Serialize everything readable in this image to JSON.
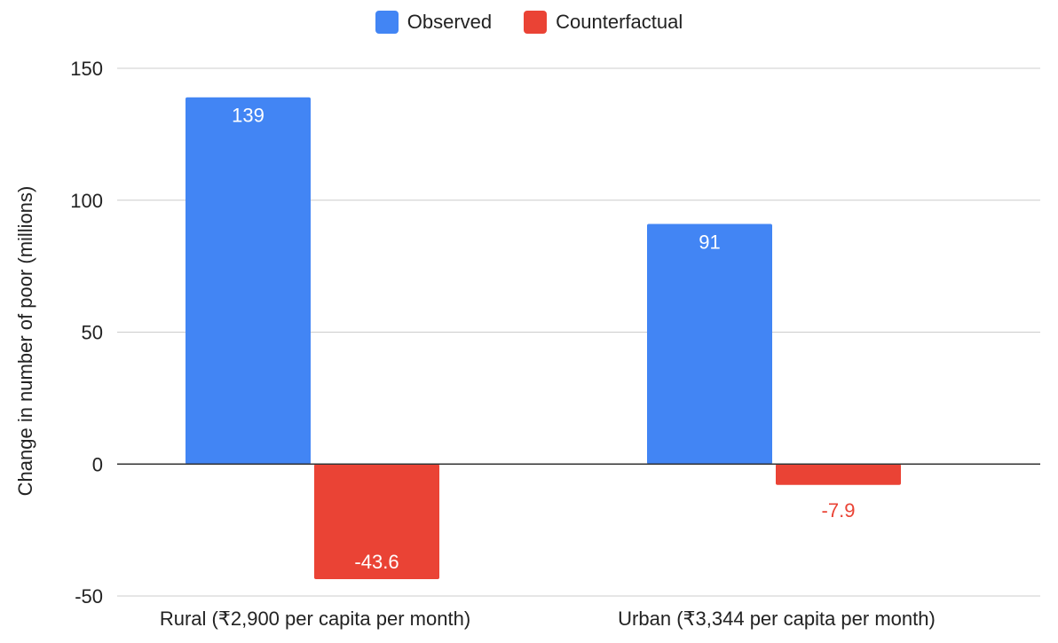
{
  "chart_data": {
    "type": "bar",
    "title": "",
    "xlabel": "",
    "ylabel": "Change in number of poor (millions)",
    "categories": [
      "Rural (₹2,900 per capita per month)",
      "Urban (₹3,344 per capita per month)"
    ],
    "series": [
      {
        "name": "Observed",
        "values": [
          139,
          91
        ],
        "labels": [
          "139",
          "91"
        ],
        "color": "#4285F4"
      },
      {
        "name": "Counterfactual",
        "values": [
          -43.6,
          -7.9
        ],
        "labels": [
          "-43.6",
          "-7.9"
        ],
        "color": "#EA4335"
      }
    ],
    "ylim": [
      -50,
      150
    ],
    "yticks": [
      -50,
      0,
      50,
      100,
      150
    ],
    "grid": true,
    "legend_position": "top-center"
  }
}
